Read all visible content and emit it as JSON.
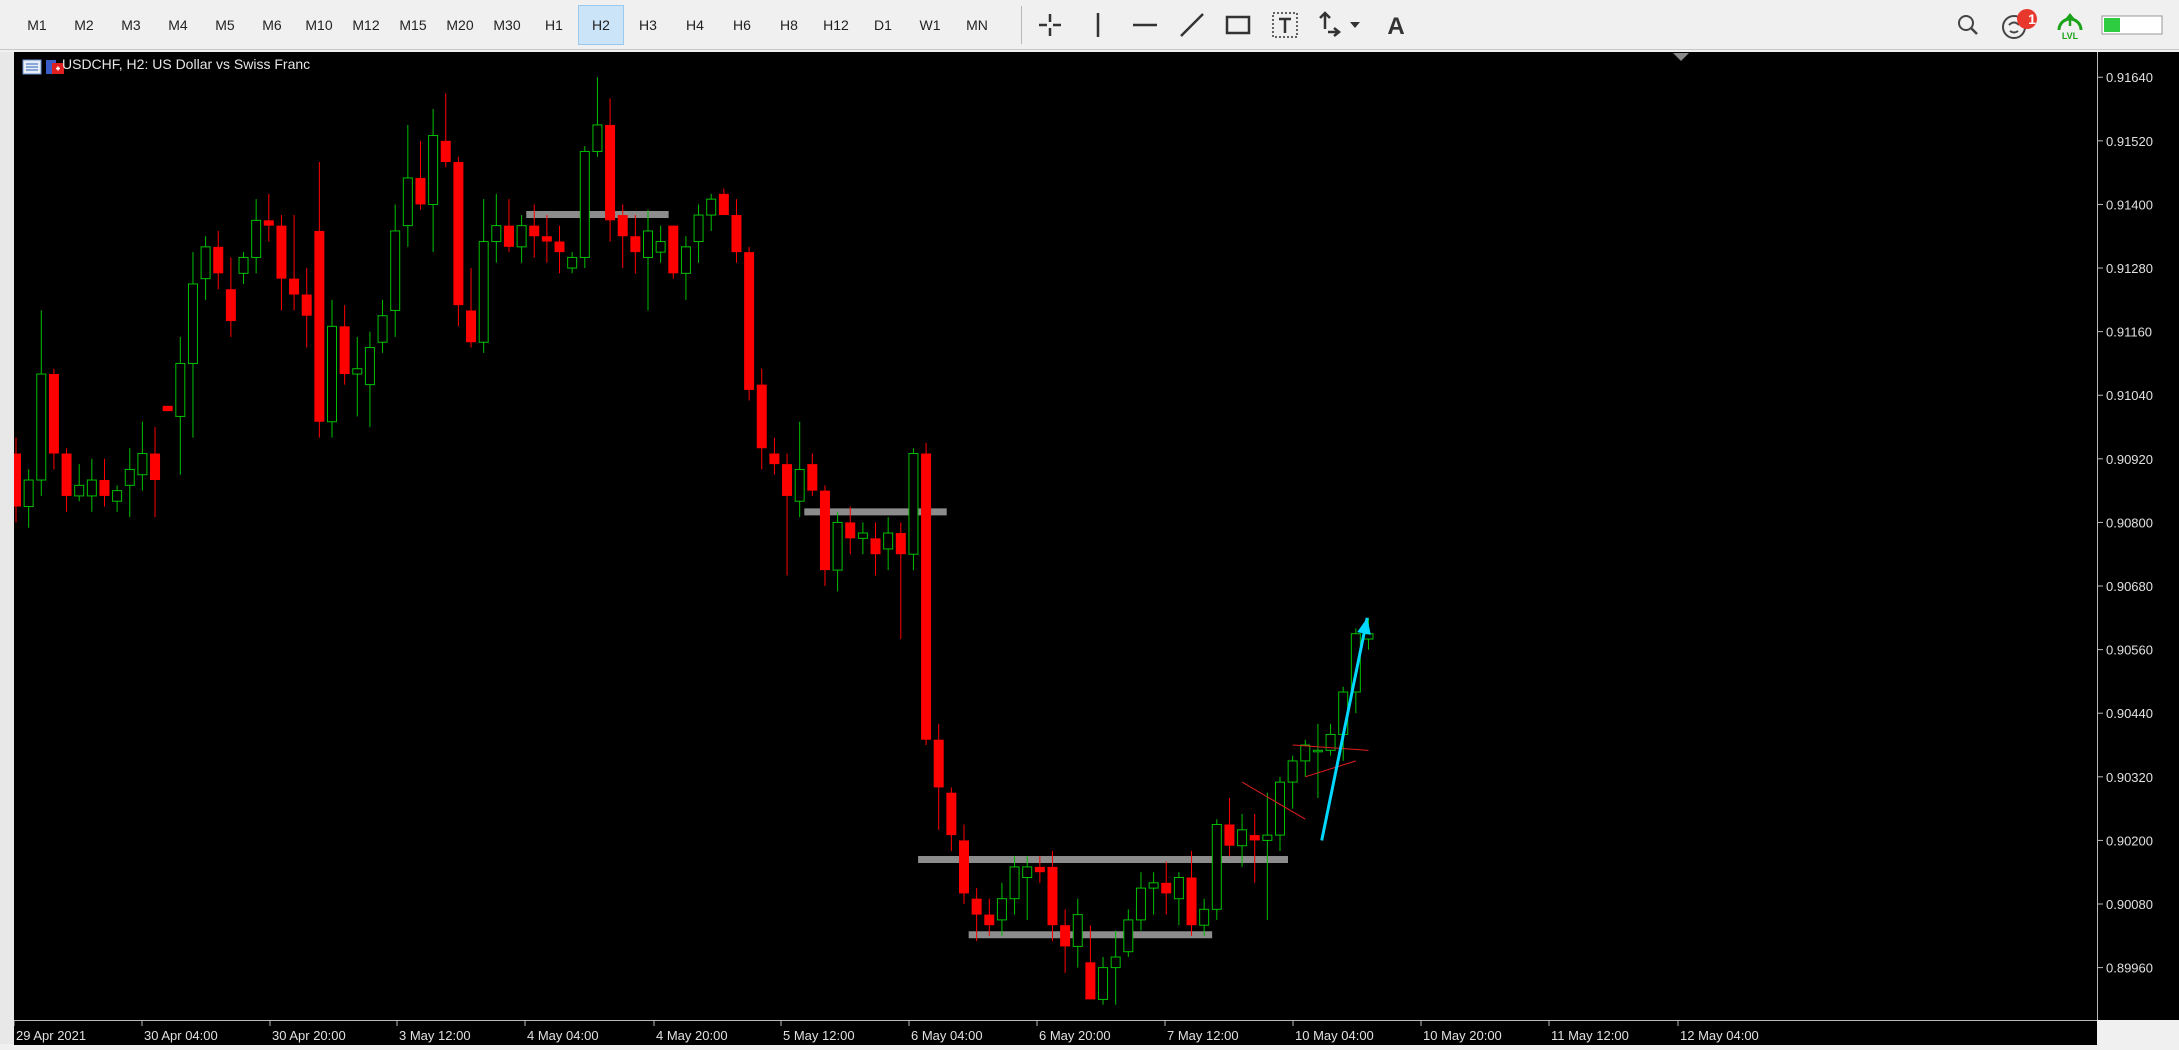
{
  "timeframes": [
    {
      "label": "M1",
      "active": false
    },
    {
      "label": "M2",
      "active": false
    },
    {
      "label": "M3",
      "active": false
    },
    {
      "label": "M4",
      "active": false
    },
    {
      "label": "M5",
      "active": false
    },
    {
      "label": "M6",
      "active": false
    },
    {
      "label": "M10",
      "active": false
    },
    {
      "label": "M12",
      "active": false
    },
    {
      "label": "M15",
      "active": false
    },
    {
      "label": "M20",
      "active": false
    },
    {
      "label": "M30",
      "active": false
    },
    {
      "label": "H1",
      "active": false
    },
    {
      "label": "H2",
      "active": true
    },
    {
      "label": "H3",
      "active": false
    },
    {
      "label": "H4",
      "active": false
    },
    {
      "label": "H6",
      "active": false
    },
    {
      "label": "H8",
      "active": false
    },
    {
      "label": "H12",
      "active": false
    },
    {
      "label": "D1",
      "active": false
    },
    {
      "label": "W1",
      "active": false
    },
    {
      "label": "MN",
      "active": false
    }
  ],
  "tools": [
    "crosshair-icon",
    "vertical-line-icon",
    "horizontal-line-icon",
    "trendline-icon",
    "rectangle-icon",
    "text-icon",
    "arrows-icon",
    "label-icon"
  ],
  "notifications": {
    "count": "1"
  },
  "lvl_label": "LVL",
  "chart": {
    "symbol_title": "USDCHF, H2:  US Dollar vs Swiss Franc",
    "price_labels": [
      "0.91640",
      "0.91520",
      "0.91400",
      "0.91280",
      "0.91160",
      "0.91040",
      "0.90920",
      "0.90800",
      "0.90680",
      "0.90560",
      "0.90440",
      "0.90320",
      "0.90200",
      "0.90080",
      "0.89960"
    ],
    "time_labels": [
      "29 Apr 2021",
      "30 Apr 04:00",
      "30 Apr 20:00",
      "3 May 12:00",
      "4 May 04:00",
      "4 May 20:00",
      "5 May 12:00",
      "6 May 04:00",
      "6 May 20:00",
      "7 May 12:00",
      "10 May 04:00",
      "10 May 20:00",
      "11 May 12:00",
      "12 May 04:00"
    ],
    "colors": {
      "bull": "#00c000",
      "bear": "#ff0000",
      "level": "#8c8c8c",
      "arrow": "#00d8ff",
      "background": "#000000"
    }
  },
  "chart_data": {
    "type": "candlestick",
    "symbol": "USDCHF",
    "timeframe": "H2",
    "ylim": [
      0.899,
      0.9168
    ],
    "candles": [
      [
        0.9093,
        0.9096,
        0.908,
        0.9083
      ],
      [
        0.9083,
        0.909,
        0.9079,
        0.9088
      ],
      [
        0.9088,
        0.912,
        0.9085,
        0.9108
      ],
      [
        0.9108,
        0.9109,
        0.909,
        0.9093
      ],
      [
        0.9093,
        0.9094,
        0.9082,
        0.9085
      ],
      [
        0.9085,
        0.9091,
        0.9084,
        0.9087
      ],
      [
        0.9085,
        0.9092,
        0.9082,
        0.9088
      ],
      [
        0.9088,
        0.9092,
        0.9083,
        0.9085
      ],
      [
        0.9084,
        0.9087,
        0.9082,
        0.9086
      ],
      [
        0.9087,
        0.9094,
        0.9081,
        0.909
      ],
      [
        0.9089,
        0.9099,
        0.9086,
        0.9093
      ],
      [
        0.9093,
        0.9098,
        0.9081,
        0.9088
      ],
      [
        0.9102,
        0.9102,
        0.9101,
        0.9101
      ],
      [
        0.91,
        0.9115,
        0.9089,
        0.911
      ],
      [
        0.911,
        0.9131,
        0.9096,
        0.9125
      ],
      [
        0.9126,
        0.9134,
        0.9122,
        0.9132
      ],
      [
        0.9132,
        0.9135,
        0.9124,
        0.9127
      ],
      [
        0.9124,
        0.913,
        0.9115,
        0.9118
      ],
      [
        0.9127,
        0.9131,
        0.9125,
        0.913
      ],
      [
        0.913,
        0.9141,
        0.9127,
        0.9137
      ],
      [
        0.9137,
        0.9142,
        0.9133,
        0.9136
      ],
      [
        0.9136,
        0.9138,
        0.912,
        0.9126
      ],
      [
        0.9126,
        0.9138,
        0.912,
        0.9123
      ],
      [
        0.9123,
        0.9128,
        0.9113,
        0.9119
      ],
      [
        0.9135,
        0.9148,
        0.9096,
        0.9099
      ],
      [
        0.9099,
        0.9122,
        0.9096,
        0.9117
      ],
      [
        0.9117,
        0.9121,
        0.9106,
        0.9108
      ],
      [
        0.9108,
        0.9115,
        0.91,
        0.9109
      ],
      [
        0.9106,
        0.9116,
        0.9098,
        0.9113
      ],
      [
        0.9114,
        0.9122,
        0.9112,
        0.9119
      ],
      [
        0.912,
        0.914,
        0.9115,
        0.9135
      ],
      [
        0.9136,
        0.9155,
        0.9132,
        0.9145
      ],
      [
        0.9145,
        0.9152,
        0.9139,
        0.914
      ],
      [
        0.914,
        0.9158,
        0.9131,
        0.9153
      ],
      [
        0.9152,
        0.9161,
        0.9147,
        0.9148
      ],
      [
        0.9148,
        0.9149,
        0.9117,
        0.9121
      ],
      [
        0.912,
        0.9128,
        0.9113,
        0.9114
      ],
      [
        0.9114,
        0.9141,
        0.9112,
        0.9133
      ],
      [
        0.9133,
        0.9142,
        0.9129,
        0.9136
      ],
      [
        0.9136,
        0.9141,
        0.9131,
        0.9132
      ],
      [
        0.9132,
        0.9138,
        0.9129,
        0.9136
      ],
      [
        0.9136,
        0.914,
        0.913,
        0.9134
      ],
      [
        0.9134,
        0.9138,
        0.9129,
        0.9133
      ],
      [
        0.9133,
        0.9136,
        0.9127,
        0.9131
      ],
      [
        0.9128,
        0.9131,
        0.9127,
        0.913
      ],
      [
        0.913,
        0.9151,
        0.9128,
        0.915
      ],
      [
        0.915,
        0.9164,
        0.9149,
        0.9155
      ],
      [
        0.9155,
        0.916,
        0.9133,
        0.9137
      ],
      [
        0.9138,
        0.914,
        0.9128,
        0.9134
      ],
      [
        0.9134,
        0.9138,
        0.9127,
        0.9131
      ],
      [
        0.913,
        0.9139,
        0.912,
        0.9135
      ],
      [
        0.9131,
        0.9136,
        0.9129,
        0.9133
      ],
      [
        0.9136,
        0.9136,
        0.9126,
        0.9127
      ],
      [
        0.9127,
        0.9134,
        0.9122,
        0.9132
      ],
      [
        0.9133,
        0.914,
        0.9129,
        0.9138
      ],
      [
        0.9138,
        0.9142,
        0.9135,
        0.9141
      ],
      [
        0.9142,
        0.9143,
        0.9138,
        0.9138
      ],
      [
        0.9138,
        0.9141,
        0.9129,
        0.9131
      ],
      [
        0.9131,
        0.9132,
        0.9103,
        0.9105
      ],
      [
        0.9106,
        0.9109,
        0.909,
        0.9094
      ],
      [
        0.9093,
        0.9096,
        0.9089,
        0.9091
      ],
      [
        0.9091,
        0.9093,
        0.907,
        0.9085
      ],
      [
        0.9084,
        0.9099,
        0.9081,
        0.909
      ],
      [
        0.9091,
        0.9093,
        0.9085,
        0.9086
      ],
      [
        0.9086,
        0.9087,
        0.9068,
        0.9071
      ],
      [
        0.9071,
        0.9082,
        0.9067,
        0.908
      ],
      [
        0.908,
        0.9083,
        0.9074,
        0.9077
      ],
      [
        0.9077,
        0.908,
        0.9074,
        0.9078
      ],
      [
        0.9077,
        0.908,
        0.907,
        0.9074
      ],
      [
        0.9075,
        0.9081,
        0.9071,
        0.9078
      ],
      [
        0.9078,
        0.908,
        0.9058,
        0.9074
      ],
      [
        0.9074,
        0.9094,
        0.9071,
        0.9093
      ],
      [
        0.9093,
        0.9095,
        0.9038,
        0.9039
      ],
      [
        0.9039,
        0.9042,
        0.9022,
        0.903
      ],
      [
        0.9029,
        0.903,
        0.9018,
        0.9021
      ],
      [
        0.902,
        0.9023,
        0.9008,
        0.901
      ],
      [
        0.9009,
        0.9011,
        0.9001,
        0.9006
      ],
      [
        0.9006,
        0.9009,
        0.9002,
        0.9004
      ],
      [
        0.9005,
        0.9012,
        0.9002,
        0.9009
      ],
      [
        0.9009,
        0.9017,
        0.9006,
        0.9015
      ],
      [
        0.9013,
        0.9017,
        0.9005,
        0.9015
      ],
      [
        0.9015,
        0.9017,
        0.9012,
        0.9014
      ],
      [
        0.9015,
        0.9018,
        0.9001,
        0.9004
      ],
      [
        0.9004,
        0.9007,
        0.8995,
        0.9
      ],
      [
        0.9,
        0.9009,
        0.8996,
        0.9006
      ],
      [
        0.8997,
        0.9004,
        0.899,
        0.899
      ],
      [
        0.899,
        0.8998,
        0.8989,
        0.8996
      ],
      [
        0.8996,
        0.9003,
        0.8989,
        0.8998
      ],
      [
        0.8999,
        0.9007,
        0.8998,
        0.9005
      ],
      [
        0.9005,
        0.9014,
        0.9003,
        0.9011
      ],
      [
        0.9011,
        0.9014,
        0.9006,
        0.9012
      ],
      [
        0.9012,
        0.9016,
        0.9006,
        0.901
      ],
      [
        0.9009,
        0.9014,
        0.9004,
        0.9013
      ],
      [
        0.9013,
        0.9018,
        0.9002,
        0.9004
      ],
      [
        0.9004,
        0.9009,
        0.9002,
        0.9007
      ],
      [
        0.9007,
        0.9024,
        0.9005,
        0.9023
      ],
      [
        0.9023,
        0.9028,
        0.9017,
        0.9019
      ],
      [
        0.9019,
        0.9025,
        0.9015,
        0.9022
      ],
      [
        0.9021,
        0.9025,
        0.9012,
        0.902
      ],
      [
        0.902,
        0.9029,
        0.9005,
        0.9021
      ],
      [
        0.9021,
        0.9032,
        0.9018,
        0.9031
      ],
      [
        0.9031,
        0.9036,
        0.9026,
        0.9035
      ],
      [
        0.9035,
        0.9039,
        0.9032,
        0.9038
      ],
      [
        0.9037,
        0.9042,
        0.9028,
        0.9037
      ],
      [
        0.9037,
        0.9042,
        0.9036,
        0.904
      ],
      [
        0.904,
        0.9049,
        0.9035,
        0.9048
      ],
      [
        0.9048,
        0.906,
        0.9044,
        0.9059
      ],
      [
        0.9058,
        0.9062,
        0.9056,
        0.9059
      ]
    ],
    "level_lines": [
      {
        "price": 0.91381,
        "from_bar": 41,
        "to_bar": 51
      },
      {
        "price": 0.9082,
        "from_bar": 63,
        "to_bar": 73
      },
      {
        "price": 0.90164,
        "from_bar": 72,
        "to_bar": 100
      },
      {
        "price": 0.90022,
        "from_bar": 76,
        "to_bar": 94
      }
    ],
    "red_lines": [
      {
        "from": {
          "bar": 97,
          "price": 0.9031
        },
        "to": {
          "bar": 102,
          "price": 0.9024
        }
      },
      {
        "from": {
          "bar": 101,
          "price": 0.9038
        },
        "to": {
          "bar": 107,
          "price": 0.9037
        }
      },
      {
        "from": {
          "bar": 102,
          "price": 0.9032
        },
        "to": {
          "bar": 106,
          "price": 0.9035
        }
      }
    ],
    "arrow": {
      "from": {
        "bar": 103.3,
        "price": 0.902
      },
      "to": {
        "bar": 106.9,
        "price": 0.9062
      }
    }
  }
}
